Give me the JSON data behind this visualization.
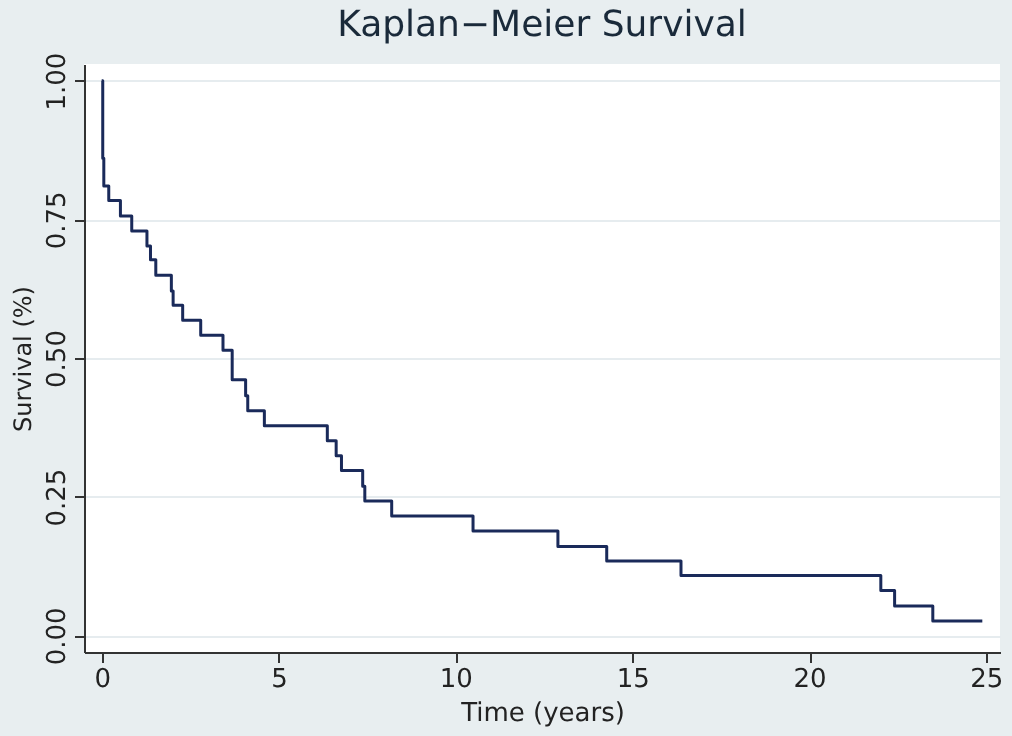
{
  "chart_data": {
    "type": "step",
    "title": "Kaplan−Meier Survival",
    "xlabel": "Time (years)",
    "ylabel": "Survival (%)",
    "x": [
      0,
      0.03,
      0.06,
      0.2,
      0.53,
      0.85,
      1.28,
      1.38,
      1.53,
      1.97,
      2.02,
      2.29,
      2.8,
      3.43,
      3.69,
      4.07,
      4.13,
      4.6,
      6.38,
      6.63,
      6.78,
      7.38,
      7.44,
      8.2,
      10.5,
      12.9,
      14.28,
      16.38,
      22.03,
      22.42,
      23.5,
      24.9
    ],
    "series": [
      {
        "color": "#1a2a5a",
        "values": [
          1.0,
          0.86,
          0.81,
          0.784,
          0.756,
          0.729,
          0.702,
          0.677,
          0.649,
          0.621,
          0.595,
          0.568,
          0.541,
          0.514,
          0.461,
          0.432,
          0.405,
          0.378,
          0.351,
          0.324,
          0.297,
          0.269,
          0.242,
          0.215,
          0.188,
          0.16,
          0.134,
          0.108,
          0.081,
          0.053,
          0.026,
          0.026
        ]
      }
    ],
    "xlim": [
      -0.5,
      25.4
    ],
    "ylim": [
      -0.03,
      1.03
    ],
    "xticks": [
      0,
      5,
      10,
      15,
      20,
      25
    ],
    "yticks": [
      {
        "value": 0,
        "label": "0.00"
      },
      {
        "value": 0.25,
        "label": "0.25"
      },
      {
        "value": 0.5,
        "label": "0.50"
      },
      {
        "value": 0.75,
        "label": "0.75"
      },
      {
        "value": 1,
        "label": "1.00"
      }
    ],
    "grid": "y",
    "line_style": "solid",
    "marker": "none"
  }
}
